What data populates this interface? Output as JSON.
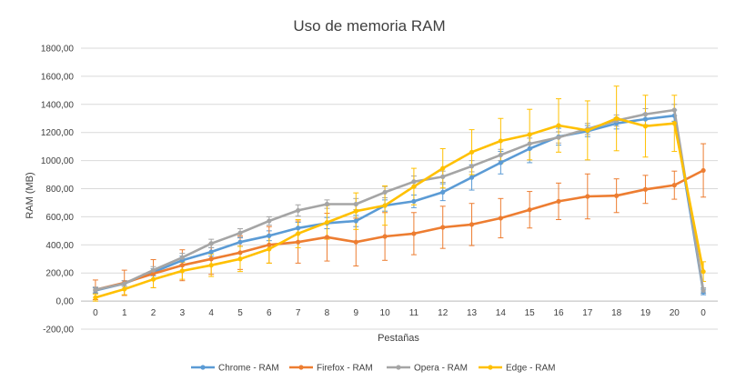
{
  "chart_data": {
    "type": "line",
    "title": "Uso de memoria RAM",
    "xlabel": "Pestañas",
    "ylabel": "RAM (MB)",
    "categories": [
      "0",
      "1",
      "2",
      "3",
      "4",
      "5",
      "6",
      "7",
      "8",
      "9",
      "10",
      "11",
      "12",
      "13",
      "14",
      "15",
      "16",
      "17",
      "18",
      "19",
      "20",
      "0"
    ],
    "ylim": [
      -200,
      1800
    ],
    "yticks": [
      -200,
      0,
      200,
      400,
      600,
      800,
      1000,
      1200,
      1400,
      1600,
      1800
    ],
    "ytick_labels": [
      "-200,00",
      "0,00",
      "200,00",
      "400,00",
      "600,00",
      "800,00",
      "1000,00",
      "1200,00",
      "1400,00",
      "1600,00",
      "1800,00"
    ],
    "grid": true,
    "legend_position": "bottom",
    "error_bars": true,
    "series": [
      {
        "name": "Chrome - RAM",
        "color": "#5b9bd5",
        "values": [
          75,
          125,
          205,
          290,
          350,
          420,
          465,
          520,
          555,
          570,
          680,
          710,
          775,
          880,
          985,
          1085,
          1170,
          1210,
          1265,
          1295,
          1320,
          65
        ],
        "errors": [
          20,
          20,
          25,
          30,
          30,
          30,
          35,
          40,
          40,
          40,
          40,
          45,
          60,
          90,
          80,
          100,
          60,
          40,
          40,
          40,
          40,
          20
        ]
      },
      {
        "name": "Firefox - RAM",
        "color": "#ed7d31",
        "values": [
          80,
          130,
          195,
          255,
          300,
          345,
          400,
          420,
          455,
          420,
          460,
          480,
          525,
          545,
          590,
          650,
          710,
          745,
          750,
          795,
          825,
          930
        ],
        "errors": [
          70,
          90,
          100,
          110,
          110,
          120,
          130,
          150,
          170,
          170,
          170,
          150,
          150,
          150,
          140,
          130,
          130,
          160,
          120,
          100,
          100,
          190
        ]
      },
      {
        "name": "Opera - RAM",
        "color": "#a5a5a5",
        "values": [
          80,
          125,
          220,
          310,
          410,
          485,
          570,
          645,
          690,
          690,
          775,
          850,
          885,
          960,
          1040,
          1120,
          1165,
          1225,
          1285,
          1330,
          1360,
          75
        ],
        "errors": [
          20,
          20,
          25,
          30,
          30,
          30,
          30,
          40,
          30,
          40,
          40,
          40,
          40,
          40,
          40,
          40,
          40,
          40,
          40,
          40,
          40,
          20
        ]
      },
      {
        "name": "Edge - RAM",
        "color": "#ffc000",
        "values": [
          25,
          85,
          155,
          215,
          255,
          300,
          370,
          480,
          560,
          640,
          680,
          815,
          945,
          1060,
          1140,
          1185,
          1250,
          1215,
          1300,
          1245,
          1265,
          210
        ],
        "errors": [
          25,
          40,
          60,
          60,
          80,
          90,
          100,
          100,
          120,
          130,
          140,
          130,
          140,
          160,
          160,
          180,
          190,
          210,
          230,
          220,
          200,
          70
        ]
      }
    ]
  }
}
